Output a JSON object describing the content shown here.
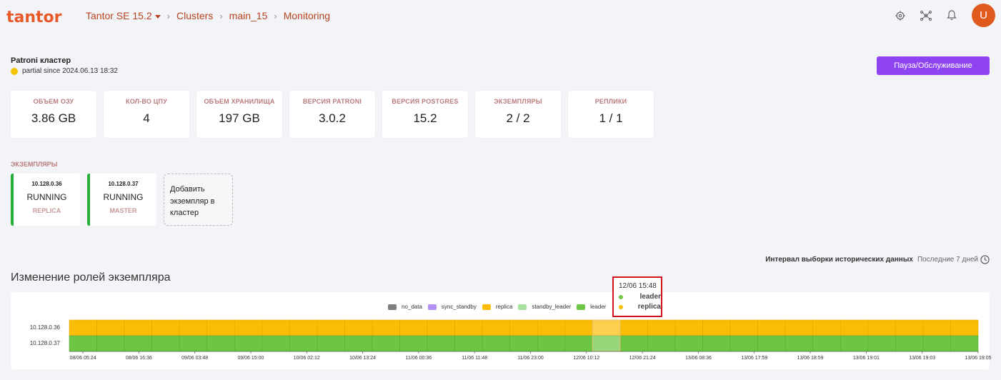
{
  "header": {
    "logo_text": "tantor",
    "breadcrumbs": [
      "Tantor SE 15.2",
      "Clusters",
      "main_15",
      "Monitoring"
    ],
    "icons": [
      "gear-icon",
      "topology-icon",
      "bell-icon"
    ],
    "avatar_letter": "U"
  },
  "cluster": {
    "title": "Patroni кластер",
    "status_text": "partial since 2024.06.13 18:32",
    "status_color": "#f5c400",
    "pause_button": "Пауза/Обслуживание"
  },
  "stats": [
    {
      "label": "ОБЪЕМ ОЗУ",
      "value": "3.86 GB"
    },
    {
      "label": "КОЛ-ВО ЦПУ",
      "value": "4"
    },
    {
      "label": "ОБЪЕМ ХРАНИЛИЩА",
      "value": "197 GB"
    },
    {
      "label": "ВЕРСИЯ PATRONI",
      "value": "3.0.2"
    },
    {
      "label": "ВЕРСИЯ POSTGRES",
      "value": "15.2"
    },
    {
      "label": "ЭКЗЕМПЛЯРЫ",
      "value": "2 / 2"
    },
    {
      "label": "РЕПЛИКИ",
      "value": "1 / 1"
    }
  ],
  "instances_label": "ЭКЗЕМПЛЯРЫ",
  "instances": [
    {
      "ip": "10.128.0.36",
      "state": "RUNNING",
      "role": "REPLICA"
    },
    {
      "ip": "10.128.0.37",
      "state": "RUNNING",
      "role": "MASTER"
    }
  ],
  "add_instance": "Добавить экземпляр в кластер",
  "interval": {
    "label": "Интервал выборки исторических данных",
    "value": "Последние 7 дней"
  },
  "section_title": "Изменение ролей экземпляра",
  "chart_data": {
    "type": "timeline",
    "legend": [
      {
        "name": "no_data",
        "color": "#7f7f7f"
      },
      {
        "name": "sync_standby",
        "color": "#b48ef0"
      },
      {
        "name": "replica",
        "color": "#fbbc05"
      },
      {
        "name": "standby_leader",
        "color": "#a8e0a0"
      },
      {
        "name": "leader",
        "color": "#6cc644"
      }
    ],
    "rows": [
      {
        "name": "10.128.0.36",
        "state": "replica"
      },
      {
        "name": "10.128.0.37",
        "state": "leader"
      }
    ],
    "x_ticks": [
      "08/06 05:24",
      "08/06 16:36",
      "09/06 03:48",
      "09/06 15:00",
      "10/06 02:12",
      "10/06 13:24",
      "11/06 00:36",
      "11/06 11:48",
      "11/06 23:00",
      "12/06 10:12",
      "12/06 21:24",
      "13/06 08:36",
      "13/06 17:59",
      "13/06 18:59",
      "13/06 19:01",
      "13/06 19:03",
      "13/06 19:05"
    ],
    "highlight_tick_index": 19
  },
  "tooltip": {
    "time": "12/06 15:48",
    "rows": [
      {
        "label": "leader",
        "color": "#6cc644"
      },
      {
        "label": "replica",
        "color": "#fbbc05"
      }
    ]
  }
}
